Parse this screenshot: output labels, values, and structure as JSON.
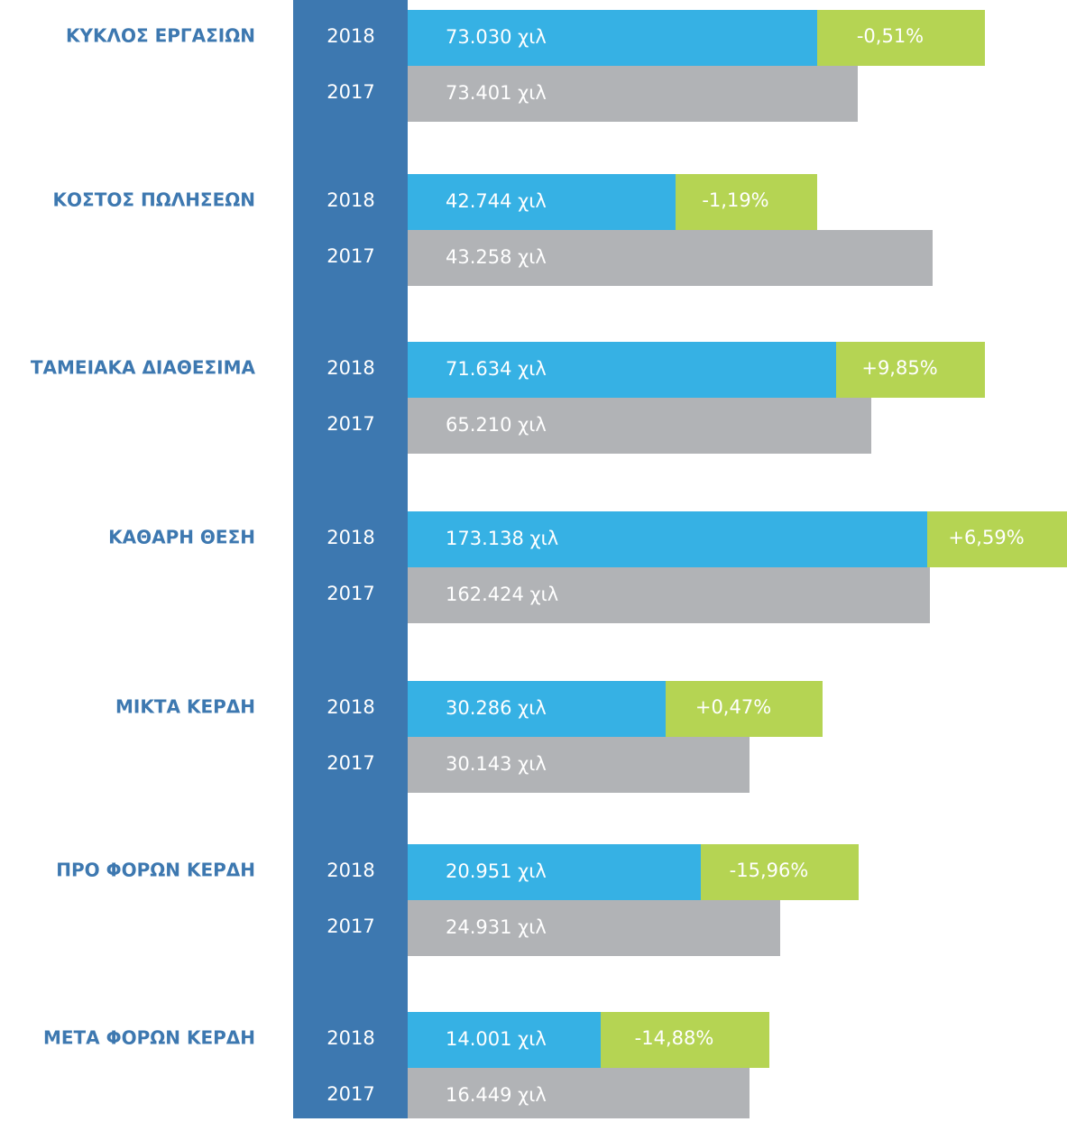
{
  "rows": [
    {
      "label": "ΚΥΚΛΟΣ ΕΡΓΑΣΙΩΝ",
      "current": {
        "year": "2018",
        "value": "73.030 χιλ",
        "change": "-0,51%"
      },
      "previous": {
        "year": "2017",
        "value": "73.401 χιλ"
      }
    },
    {
      "label": "ΚΟΣΤΟΣ ΠΩΛΗΣΕΩΝ",
      "current": {
        "year": "2018",
        "value": "42.744 χιλ",
        "change": "-1,19%"
      },
      "previous": {
        "year": "2017",
        "value": "43.258 χιλ"
      }
    },
    {
      "label": "ΤΑΜΕΙΑΚΑ ΔΙΑΘΕΣΙΜΑ",
      "current": {
        "year": "2018",
        "value": "71.634 χιλ",
        "change": "+9,85%"
      },
      "previous": {
        "year": "2017",
        "value": "65.210 χιλ"
      }
    },
    {
      "label": "ΚΑΘΑΡΗ ΘΕΣΗ",
      "current": {
        "year": "2018",
        "value": "173.138 χιλ",
        "change": "+6,59%"
      },
      "previous": {
        "year": "2017",
        "value": "162.424 χιλ"
      }
    },
    {
      "label": "ΜΙΚΤΑ ΚΕΡΔΗ",
      "current": {
        "year": "2018",
        "value": "30.286 χιλ",
        "change": "+0,47%"
      },
      "previous": {
        "year": "2017",
        "value": "30.143 χιλ"
      }
    },
    {
      "label": "ΠΡΟ ΦΟΡΩΝ ΚΕΡΔΗ",
      "current": {
        "year": "2018",
        "value": "20.951 χιλ",
        "change": "-15,96%"
      },
      "previous": {
        "year": "2017",
        "value": "24.931 χιλ"
      }
    },
    {
      "label": "ΜΕΤΑ ΦΟΡΩΝ ΚΕΡΔΗ",
      "current": {
        "year": "2018",
        "value": "14.001 χιλ",
        "change": "-14,88%"
      },
      "previous": {
        "year": "2017",
        "value": "16.449 χιλ"
      }
    }
  ]
}
